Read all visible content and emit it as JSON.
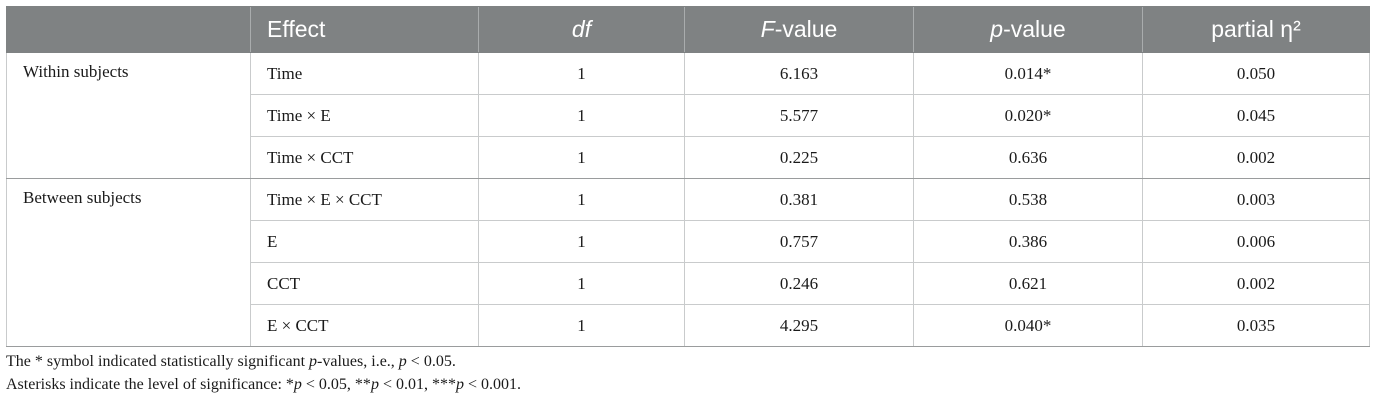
{
  "table": {
    "headers": {
      "group": "",
      "effect": "Effect",
      "df": "df",
      "f_value": {
        "italic": "F",
        "rest": "-value"
      },
      "p_value": {
        "italic": "p",
        "rest": "-value"
      },
      "eta": "partial η²"
    },
    "groups": [
      {
        "label": "Within subjects",
        "rows": [
          {
            "effect": "Time",
            "df": "1",
            "f": "6.163",
            "p": "0.014*",
            "eta": "0.050"
          },
          {
            "effect": "Time × E",
            "df": "1",
            "f": "5.577",
            "p": "0.020*",
            "eta": "0.045"
          },
          {
            "effect": "Time × CCT",
            "df": "1",
            "f": "0.225",
            "p": "0.636",
            "eta": "0.002"
          }
        ]
      },
      {
        "label": "Between subjects",
        "rows": [
          {
            "effect": "Time × E × CCT",
            "df": "1",
            "f": "0.381",
            "p": "0.538",
            "eta": "0.003"
          },
          {
            "effect": "E",
            "df": "1",
            "f": "0.757",
            "p": "0.386",
            "eta": "0.006"
          },
          {
            "effect": "CCT",
            "df": "1",
            "f": "0.246",
            "p": "0.621",
            "eta": "0.002"
          },
          {
            "effect": "E × CCT",
            "df": "1",
            "f": "4.295",
            "p": "0.040*",
            "eta": "0.035"
          }
        ]
      }
    ]
  },
  "notes": {
    "line1": {
      "a": "The * symbol indicated statistically significant ",
      "p1": "p",
      "b": "-values, i.e., ",
      "p2": "p",
      "c": " < 0.05."
    },
    "line2": {
      "a": "Asterisks indicate the level of significance: *",
      "p1": "p",
      "b": " < 0.05, **",
      "p2": "p",
      "c": " < 0.01, ***",
      "p3": "p",
      "d": " < 0.001."
    }
  }
}
